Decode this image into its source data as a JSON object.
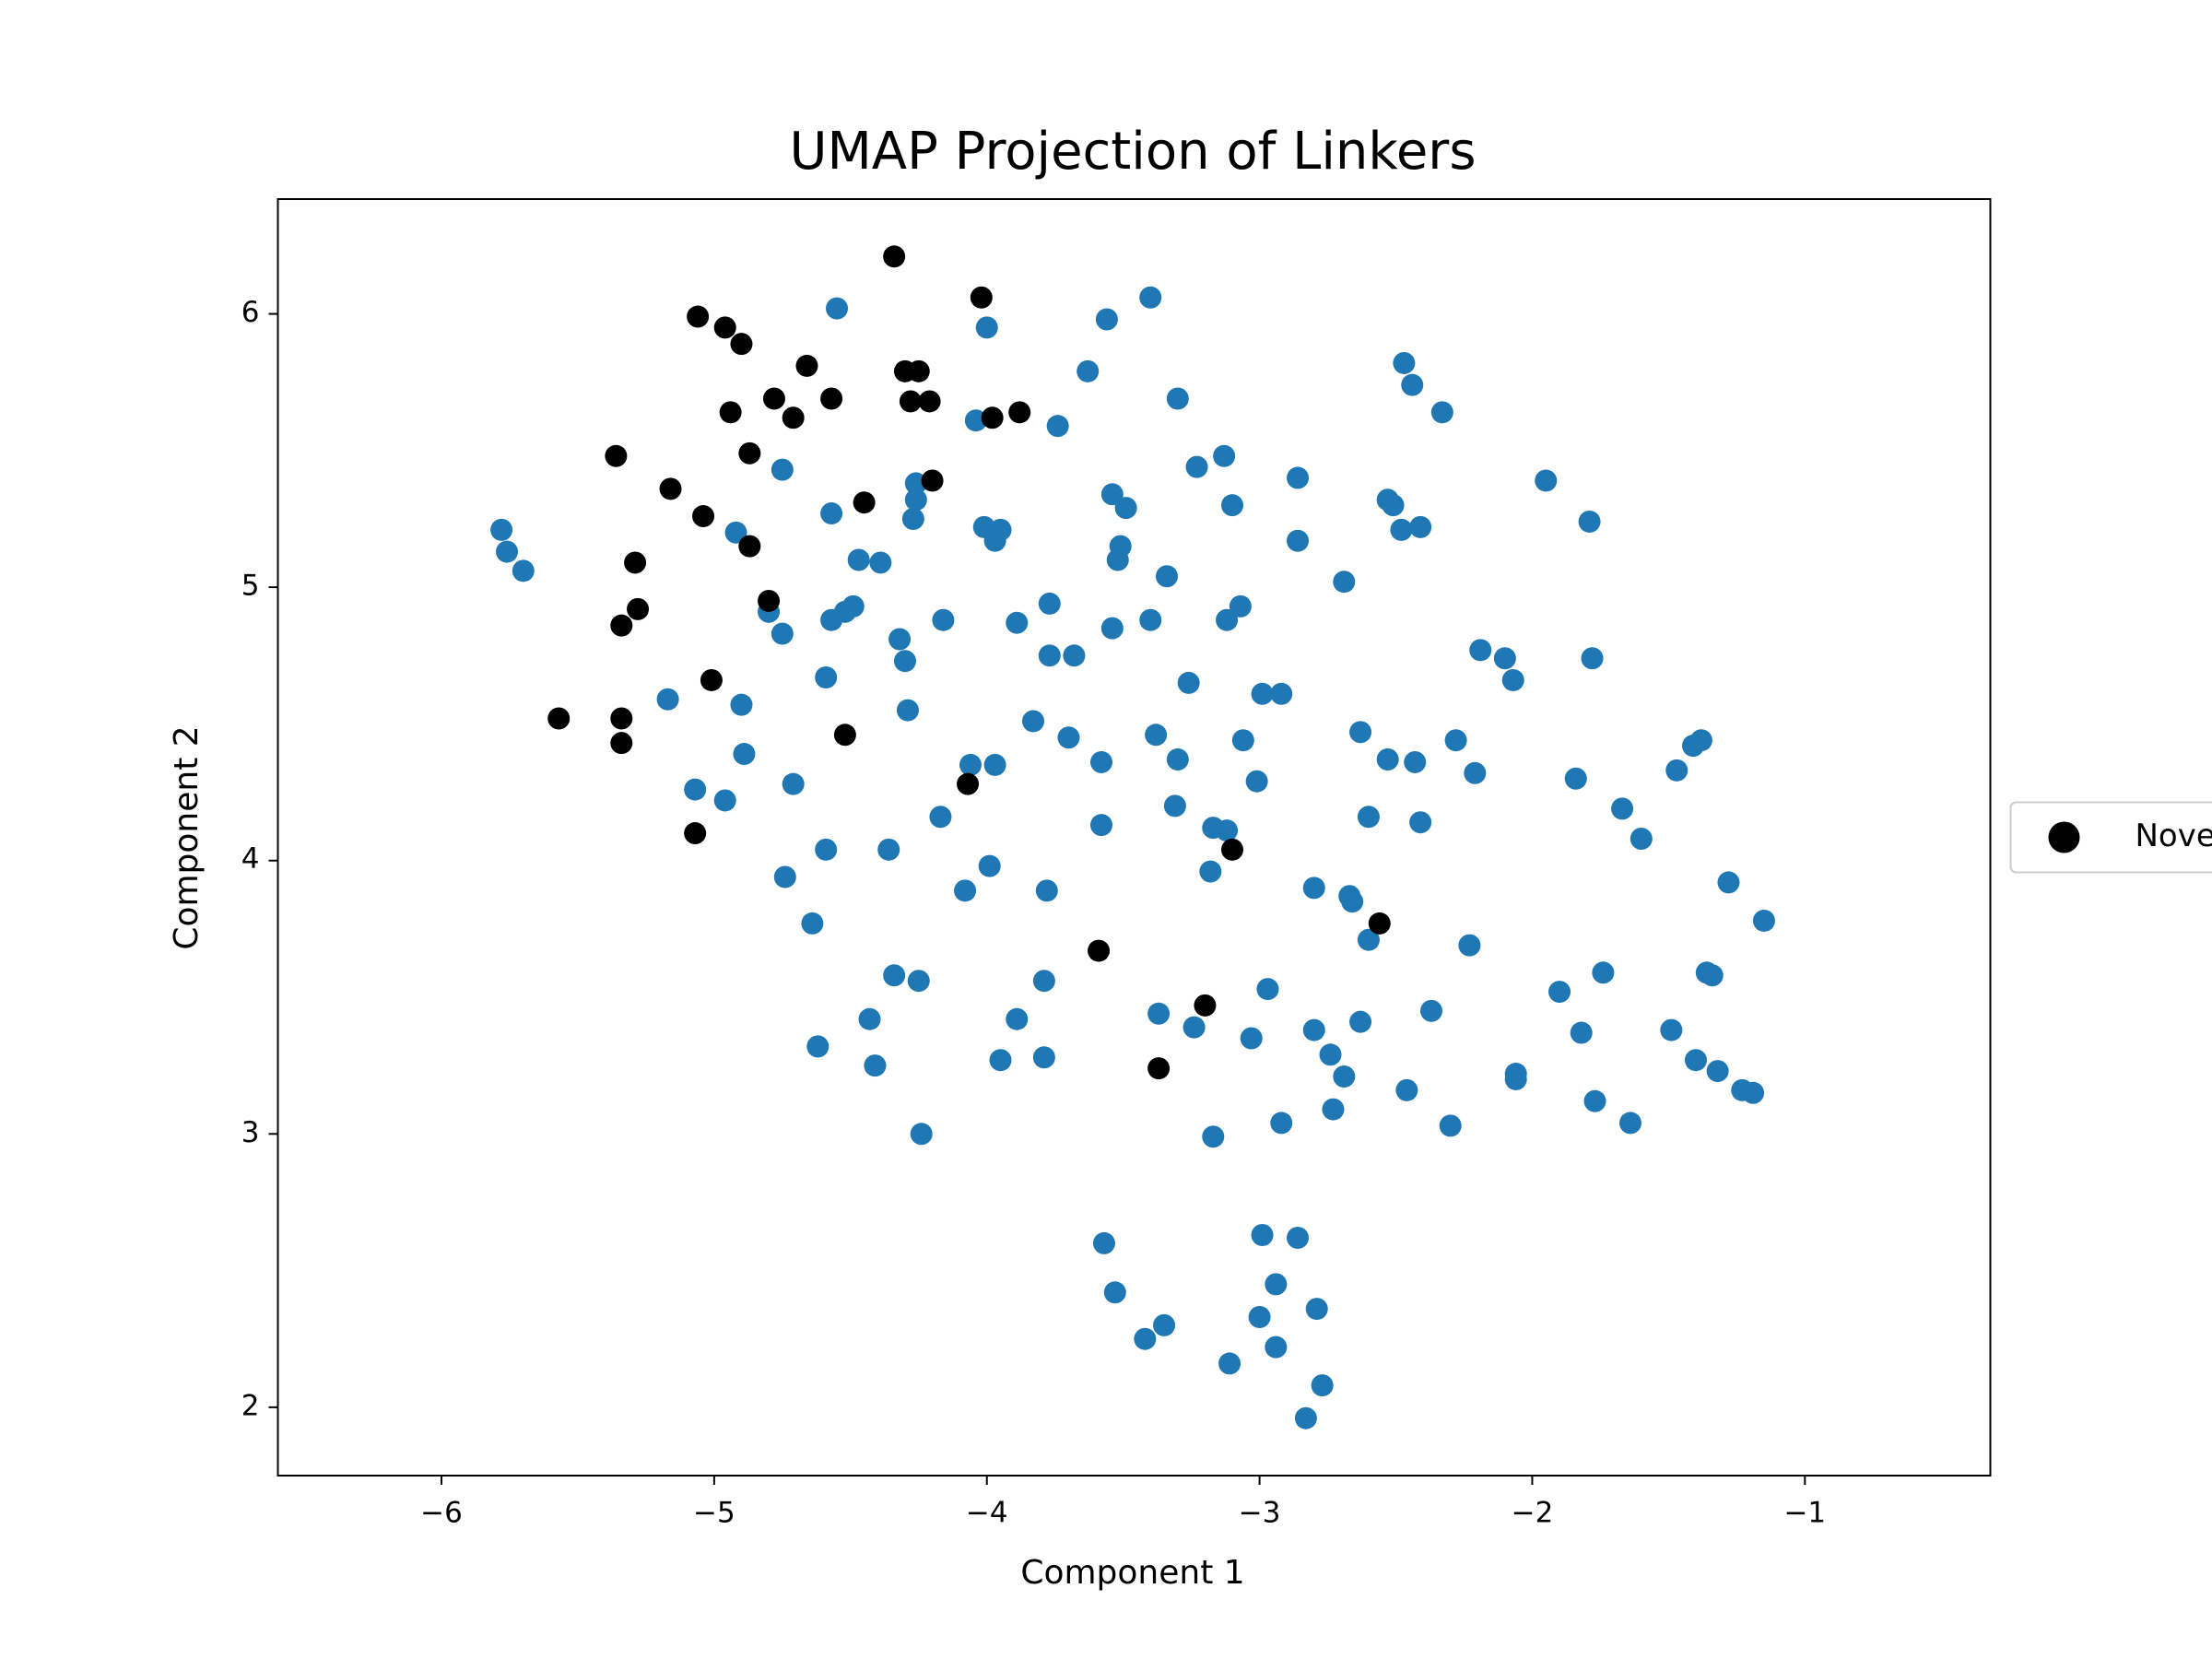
{
  "chart_data": {
    "type": "scatter",
    "title": "UMAP Projection of Linkers",
    "x_label": "Component 1",
    "y_label": "Component 2",
    "xlim": [
      -6.6,
      -0.32
    ],
    "ylim": [
      1.75,
      6.42
    ],
    "xticks": [
      {
        "value": -6,
        "label": "−6"
      },
      {
        "value": -5,
        "label": "−5"
      },
      {
        "value": -4,
        "label": "−4"
      },
      {
        "value": -3,
        "label": "−3"
      },
      {
        "value": -2,
        "label": "−2"
      },
      {
        "value": -1,
        "label": "−1"
      }
    ],
    "yticks": [
      2,
      3,
      4,
      5,
      6
    ],
    "grid": false,
    "legend": "center right",
    "series": [
      {
        "color": "#1f77b4",
        "x": [
          -5.78,
          -5.76,
          -5.7,
          -4.55,
          -4.0,
          -3.56,
          -3.4,
          -3.63,
          -3.3,
          -2.47,
          -2.44,
          -2.33,
          -4.04,
          -3.74,
          -4.75,
          -4.26,
          -4.26,
          -4.27,
          -4.57,
          -4.92,
          -3.23,
          -3.13,
          -2.86,
          -3.1,
          -3.54,
          -3.49,
          -4.01,
          -3.95,
          -3.97,
          -2.53,
          -2.51,
          -2.48,
          -2.41,
          -1.95,
          -1.79,
          -2.86,
          -3.51,
          -3.52,
          -4.47,
          -4.39,
          -3.34,
          -2.69,
          -4.8,
          -4.52,
          -4.57,
          -4.49,
          -4.75,
          -4.32,
          -4.16,
          -3.89,
          -3.77,
          -3.4,
          -3.54,
          -3.12,
          -3.07,
          -4.3,
          -3.77,
          -3.68,
          -4.59,
          -3.26,
          -5.17,
          -4.9,
          -2.19,
          -2.1,
          -2.07,
          -1.78,
          -2.99,
          -2.92,
          -4.29,
          -3.83,
          -3.7,
          -3.38,
          -3.06,
          -2.63,
          -2.28,
          -1.41,
          -1.38,
          -1.47,
          -4.89,
          -4.06,
          -3.97,
          -3.58,
          -3.3,
          -2.53,
          -2.43,
          -2.21,
          -1.84,
          -5.07,
          -4.96,
          -4.71,
          -3.01,
          -4.17,
          -3.31,
          -3.58,
          -3.17,
          -3.12,
          -2.6,
          -2.41,
          -1.67,
          -1.6,
          -4.59,
          -4.36,
          -3.99,
          -3.18,
          -4.74,
          -4.08,
          -3.78,
          -2.8,
          -2.67,
          -2.66,
          -1.28,
          -4.64,
          -2.6,
          -2.23,
          -1.15,
          -4.34,
          -4.25,
          -3.79,
          -2.97,
          -1.74,
          -1.36,
          -1.34,
          -1.9,
          -4.43,
          -3.89,
          -3.37,
          -2.63,
          -2.37,
          -3.24,
          -2.8,
          -3.03,
          -1.82,
          -1.49,
          -4.62,
          -4.41,
          -3.95,
          -3.79,
          -2.74,
          -2.69,
          -2.06,
          -2.06,
          -1.4,
          -1.32,
          -1.23,
          -1.19,
          -2.46,
          -1.77,
          -2.73,
          -1.64,
          -2.3,
          -2.92,
          -4.24,
          -3.17,
          -3.57,
          -2.99,
          -2.86,
          -2.94,
          -3.53,
          -3.35,
          -3.0,
          -3.42,
          -2.79,
          -3.11,
          -2.94,
          -2.77,
          -2.83
        ],
        "values": [
          5.21,
          5.13,
          5.06,
          6.02,
          5.95,
          5.98,
          6.06,
          5.79,
          5.69,
          5.82,
          5.74,
          5.64,
          5.61,
          5.59,
          5.43,
          5.38,
          5.32,
          5.25,
          5.27,
          5.2,
          5.44,
          5.48,
          5.4,
          5.3,
          5.34,
          5.29,
          5.22,
          5.21,
          5.17,
          5.32,
          5.3,
          5.21,
          5.22,
          5.39,
          5.24,
          5.17,
          5.15,
          5.1,
          5.1,
          5.09,
          5.04,
          5.02,
          4.91,
          4.91,
          4.88,
          4.93,
          4.83,
          4.81,
          4.88,
          4.87,
          4.94,
          4.88,
          4.85,
          4.88,
          4.93,
          4.73,
          4.75,
          4.75,
          4.67,
          4.65,
          4.59,
          4.57,
          4.77,
          4.74,
          4.66,
          4.74,
          4.61,
          4.61,
          4.55,
          4.51,
          4.45,
          4.46,
          4.44,
          4.47,
          4.44,
          4.42,
          4.44,
          4.33,
          4.39,
          4.35,
          4.35,
          4.36,
          4.37,
          4.37,
          4.36,
          4.32,
          4.3,
          4.26,
          4.22,
          4.28,
          4.29,
          4.16,
          4.2,
          4.13,
          4.12,
          4.11,
          4.16,
          4.14,
          4.19,
          4.08,
          4.04,
          4.04,
          3.98,
          3.96,
          3.94,
          3.89,
          3.89,
          3.9,
          3.87,
          3.85,
          3.92,
          3.77,
          3.71,
          3.69,
          3.78,
          3.58,
          3.56,
          3.56,
          3.53,
          3.59,
          3.59,
          3.58,
          3.52,
          3.42,
          3.42,
          3.44,
          3.41,
          3.45,
          3.39,
          3.38,
          3.35,
          3.37,
          3.38,
          3.32,
          3.25,
          3.27,
          3.28,
          3.29,
          3.21,
          3.22,
          3.2,
          3.27,
          3.23,
          3.16,
          3.15,
          3.16,
          3.12,
          3.09,
          3.04,
          3.03,
          3.04,
          3.0,
          2.99,
          2.6,
          2.63,
          2.62,
          2.45,
          2.42,
          2.3,
          2.33,
          2.25,
          2.36,
          2.16,
          2.22,
          2.08,
          1.96
        ]
      },
      {
        "name": "Nove",
        "color": "#000000",
        "x": [
          -4.34,
          -4.02,
          -5.06,
          -4.96,
          -4.9,
          -4.66,
          -4.3,
          -4.25,
          -4.78,
          -4.57,
          -4.21,
          -4.28,
          -4.71,
          -4.94,
          -3.88,
          -3.98,
          -5.36,
          -4.87,
          -4.2,
          -5.16,
          -4.45,
          -5.04,
          -4.87,
          -5.29,
          -5.28,
          -4.8,
          -5.34,
          -5.01,
          -5.57,
          -5.34,
          -4.52,
          -5.34,
          -4.07,
          -5.07,
          -3.1,
          -2.56,
          -3.59,
          -3.2,
          -3.37
        ],
        "values": [
          6.21,
          6.06,
          5.99,
          5.95,
          5.89,
          5.81,
          5.79,
          5.79,
          5.69,
          5.69,
          5.68,
          5.68,
          5.62,
          5.64,
          5.64,
          5.62,
          5.48,
          5.49,
          5.39,
          5.36,
          5.31,
          5.26,
          5.15,
          5.09,
          4.92,
          4.95,
          4.86,
          4.66,
          4.52,
          4.52,
          4.46,
          4.43,
          4.28,
          4.1,
          4.04,
          3.77,
          3.67,
          3.47,
          3.24
        ]
      }
    ]
  }
}
